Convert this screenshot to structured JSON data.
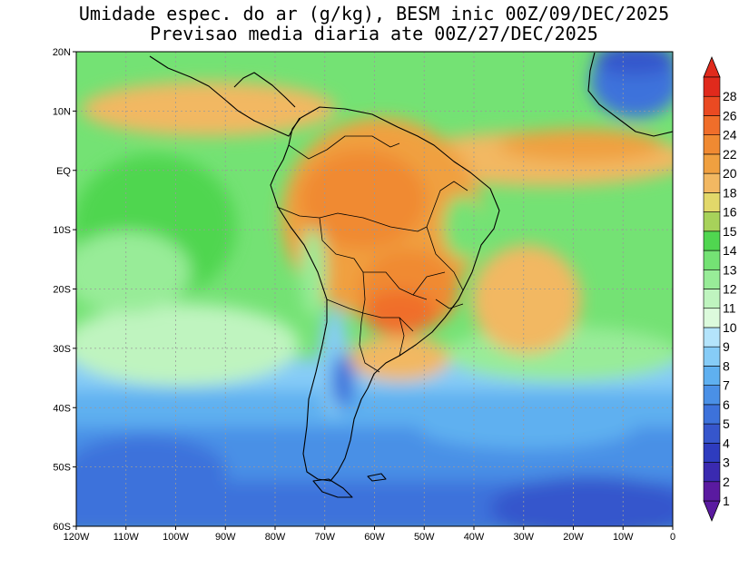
{
  "title": {
    "line1": "Umidade espec. do ar (g/kg), BESM inic 00Z/09/DEC/2025",
    "line2": "Previsao media diaria ate 00Z/27/DEC/2025"
  },
  "map": {
    "lon_range": [
      -120,
      0
    ],
    "lat_range": [
      -60,
      20
    ],
    "lat_ticks": [
      {
        "value": 20,
        "label": "20N"
      },
      {
        "value": 10,
        "label": "10N"
      },
      {
        "value": 0,
        "label": "EQ"
      },
      {
        "value": -10,
        "label": "10S"
      },
      {
        "value": -20,
        "label": "20S"
      },
      {
        "value": -30,
        "label": "30S"
      },
      {
        "value": -40,
        "label": "40S"
      },
      {
        "value": -50,
        "label": "50S"
      },
      {
        "value": -60,
        "label": "60S"
      }
    ],
    "lon_ticks": [
      {
        "value": -120,
        "label": "120W"
      },
      {
        "value": -110,
        "label": "110W"
      },
      {
        "value": -100,
        "label": "100W"
      },
      {
        "value": -90,
        "label": "90W"
      },
      {
        "value": -80,
        "label": "80W"
      },
      {
        "value": -70,
        "label": "70W"
      },
      {
        "value": -60,
        "label": "60W"
      },
      {
        "value": -50,
        "label": "50W"
      },
      {
        "value": -40,
        "label": "40W"
      },
      {
        "value": -30,
        "label": "30W"
      },
      {
        "value": -20,
        "label": "20W"
      },
      {
        "value": -10,
        "label": "10W"
      },
      {
        "value": 0,
        "label": "0"
      }
    ]
  },
  "colorbar": {
    "levels": [
      {
        "label": "1",
        "color": "#5a1aa0"
      },
      {
        "label": "2",
        "color": "#3a2ab0"
      },
      {
        "label": "3",
        "color": "#2e3cbf"
      },
      {
        "label": "4",
        "color": "#3656cc"
      },
      {
        "label": "5",
        "color": "#3d72db"
      },
      {
        "label": "6",
        "color": "#4a90e6"
      },
      {
        "label": "7",
        "color": "#5fb0f0"
      },
      {
        "label": "8",
        "color": "#86ccf7"
      },
      {
        "label": "9",
        "color": "#b4e4fb"
      },
      {
        "label": "10",
        "color": "#dcfadc"
      },
      {
        "label": "11",
        "color": "#bff4bf"
      },
      {
        "label": "12",
        "color": "#98ec98"
      },
      {
        "label": "13",
        "color": "#74e274"
      },
      {
        "label": "14",
        "color": "#50d650"
      },
      {
        "label": "15",
        "color": "#a7d25a"
      },
      {
        "label": "16",
        "color": "#e2d86a"
      },
      {
        "label": "18",
        "color": "#f2b862"
      },
      {
        "label": "20",
        "color": "#f0a040"
      },
      {
        "label": "22",
        "color": "#f08a32"
      },
      {
        "label": "24",
        "color": "#f06e2a"
      },
      {
        "label": "26",
        "color": "#ea4a22"
      },
      {
        "label": "28",
        "color": "#e02a1c"
      }
    ],
    "under_color": "#5a1aa0",
    "over_color": "#e02a1c"
  }
}
